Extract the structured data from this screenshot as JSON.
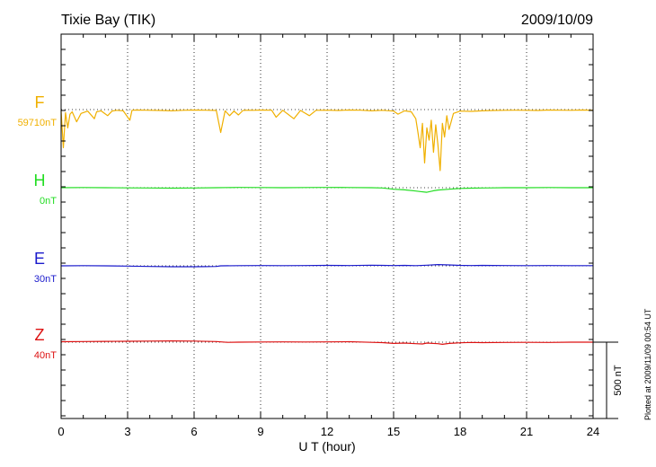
{
  "chart_data": {
    "type": "line",
    "title": "Tixie Bay (TIK)",
    "date": "2009/10/09",
    "xlabel": "U T (hour)",
    "xlim": [
      0,
      24
    ],
    "xticks": [
      "0",
      "3",
      "6",
      "9",
      "12",
      "15",
      "18",
      "21",
      "24"
    ],
    "scale_bar_label": "500 nT",
    "scale_bar_nT": 500,
    "side_note": "Plotted at 2009/11/09 00:54 UT",
    "colors": {
      "F": "#f0b000",
      "H": "#22dd22",
      "E": "#1a1acc",
      "Z": "#dd1111"
    },
    "series": [
      {
        "name": "F",
        "baseline_label": "59710nT",
        "baseline_level": 59710,
        "baseline_y": 0,
        "x": [
          0,
          0.1,
          0.2,
          0.3,
          0.4,
          0.5,
          0.7,
          0.9,
          1.2,
          1.5,
          1.6,
          1.8,
          2.1,
          2.3,
          2.5,
          2.8,
          3.1,
          3.2,
          3.4,
          3.8,
          4.5,
          5.0,
          5.5,
          6.0,
          6.5,
          7.0,
          7.2,
          7.4,
          7.6,
          7.8,
          8.0,
          8.2,
          8.4,
          8.7,
          9.0,
          9.5,
          9.7,
          10.0,
          10.5,
          10.8,
          11.2,
          11.5,
          12.0,
          12.5,
          13.0,
          13.5,
          14.0,
          14.5,
          15.0,
          15.2,
          15.5,
          15.8,
          16.0,
          16.1,
          16.2,
          16.3,
          16.4,
          16.5,
          16.6,
          16.7,
          16.8,
          16.9,
          17.0,
          17.1,
          17.2,
          17.3,
          17.4,
          17.5,
          17.7,
          18.0,
          18.5,
          19.0,
          19.5,
          20.0,
          20.5,
          21.0,
          21.5,
          22.0,
          22.5,
          23.0,
          23.5,
          24.0
        ],
        "y": [
          -10,
          -250,
          -20,
          -120,
          -30,
          -15,
          -80,
          -25,
          -10,
          -60,
          -15,
          -8,
          -40,
          -10,
          -5,
          -8,
          -70,
          -5,
          -3,
          -4,
          -6,
          -8,
          -5,
          -3,
          -4,
          -6,
          -150,
          -8,
          -40,
          -10,
          -35,
          -6,
          -4,
          -5,
          -3,
          -4,
          -50,
          -5,
          -60,
          -6,
          -40,
          -5,
          -4,
          -6,
          -3,
          -4,
          -8,
          -5,
          -10,
          -30,
          -8,
          -15,
          -60,
          -150,
          -250,
          -90,
          -350,
          -120,
          -200,
          -70,
          -280,
          -100,
          -230,
          -400,
          -90,
          -180,
          -40,
          -130,
          -25,
          -10,
          -12,
          -8,
          -6,
          -5,
          -4,
          -5,
          -6,
          -3,
          -4,
          -5,
          -3,
          -4
        ]
      },
      {
        "name": "H",
        "baseline_label": "0nT",
        "baseline_level": 0,
        "baseline_y": 0,
        "x": [
          0,
          1,
          2,
          3,
          4,
          5,
          6,
          7,
          8,
          9,
          10,
          11,
          12,
          13,
          14,
          14.5,
          15,
          15.5,
          16,
          16.2,
          16.5,
          16.8,
          17,
          17.5,
          18,
          18.5,
          19,
          19.5,
          20,
          21,
          22,
          23,
          24
        ],
        "y": [
          0,
          1,
          0,
          -1,
          -2,
          -3,
          -2,
          0,
          2,
          1,
          0,
          1,
          2,
          1,
          0,
          -2,
          -10,
          -14,
          -22,
          -25,
          -30,
          -20,
          -15,
          -10,
          -5,
          -3,
          -2,
          -1,
          0,
          0,
          1,
          0,
          0
        ]
      },
      {
        "name": "E",
        "baseline_label": "30nT",
        "baseline_level": 30,
        "baseline_y": 0,
        "x": [
          0,
          1,
          2,
          3,
          4,
          5,
          6,
          6.5,
          7,
          7.2,
          8,
          9,
          10,
          11,
          12,
          13,
          14,
          14.5,
          15,
          15.5,
          16,
          16.5,
          17,
          17.5,
          18,
          18.5,
          19,
          20,
          21,
          22,
          23,
          24
        ],
        "y": [
          0,
          1,
          0,
          -2,
          -4,
          -6,
          -6,
          -5,
          -4,
          0,
          1,
          2,
          1,
          2,
          3,
          2,
          4,
          3,
          2,
          3,
          1,
          4,
          8,
          6,
          3,
          2,
          3,
          2,
          1,
          2,
          1,
          1
        ]
      },
      {
        "name": "Z",
        "baseline_label": "40nT",
        "baseline_level": 40,
        "baseline_y": 0,
        "x": [
          0,
          1,
          2,
          3,
          4,
          5,
          6,
          7,
          7.5,
          8,
          9,
          10,
          11,
          12,
          13,
          13.5,
          14,
          14.5,
          15,
          15.5,
          16,
          16.3,
          16.5,
          17,
          17.2,
          17.5,
          18,
          18.5,
          19,
          20,
          21,
          22,
          23,
          24
        ],
        "y": [
          3,
          4,
          5,
          6,
          7,
          8,
          7,
          4,
          -1,
          0,
          1,
          2,
          1,
          2,
          3,
          1,
          -1,
          -3,
          -8,
          -6,
          -10,
          -12,
          -6,
          -10,
          -14,
          -8,
          -4,
          -2,
          -3,
          -2,
          -1,
          -2,
          0,
          0
        ]
      }
    ]
  }
}
